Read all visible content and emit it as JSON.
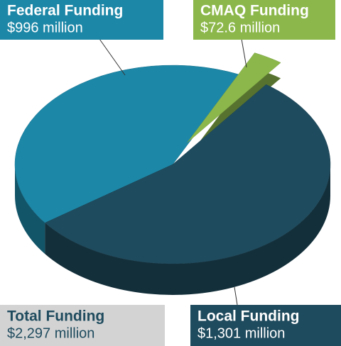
{
  "chart_data": {
    "type": "pie",
    "categories": [
      "Federal Funding",
      "CMAQ Funding",
      "Local Funding"
    ],
    "values": [
      996,
      72.6,
      1301
    ],
    "value_labels": [
      "$996 million",
      "$72.6 million",
      "$1,301 million"
    ],
    "colors": [
      "#1d87a7",
      "#8cb84b",
      "#1f4b5e"
    ],
    "total": {
      "name": "Total Funding",
      "value": 2297,
      "value_label": "$2,297 million"
    }
  }
}
